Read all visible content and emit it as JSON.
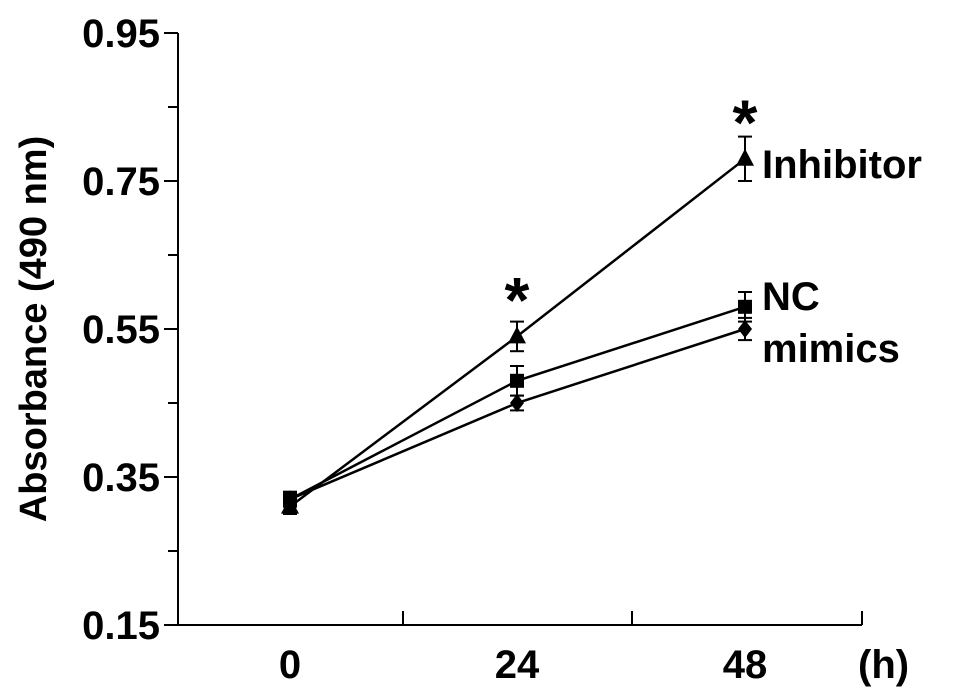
{
  "chart_data": {
    "type": "line",
    "title": "",
    "ylabel": "Absorbance (490 nm)",
    "xlabel": "(h)",
    "x": [
      0,
      24,
      48
    ],
    "x_tick_labels": [
      "0",
      "24",
      "48"
    ],
    "ylim": [
      0.15,
      0.95
    ],
    "y_ticks": [
      0.15,
      0.35,
      0.55,
      0.75,
      0.95
    ],
    "y_tick_labels": [
      "0.15",
      "0.35",
      "0.55",
      "0.75",
      "0.95"
    ],
    "y_minor_ticks": [
      0.25,
      0.45,
      0.65,
      0.85
    ],
    "grid": false,
    "legend": "inline labels at line ends",
    "series": [
      {
        "name": "Inhibitor",
        "marker": "triangle",
        "values": [
          0.31,
          0.54,
          0.78
        ],
        "errors": [
          0.01,
          0.02,
          0.03
        ]
      },
      {
        "name": "NC",
        "marker": "square",
        "values": [
          0.32,
          0.48,
          0.58
        ],
        "errors": [
          0.01,
          0.02,
          0.02
        ]
      },
      {
        "name": "mimics",
        "marker": "diamond",
        "values": [
          0.32,
          0.45,
          0.55
        ],
        "errors": [
          0.01,
          0.01,
          0.015
        ]
      }
    ],
    "annotations": [
      {
        "text": "*",
        "x": 24,
        "y": 0.6
      },
      {
        "text": "*",
        "x": 48,
        "y": 0.84
      }
    ]
  }
}
